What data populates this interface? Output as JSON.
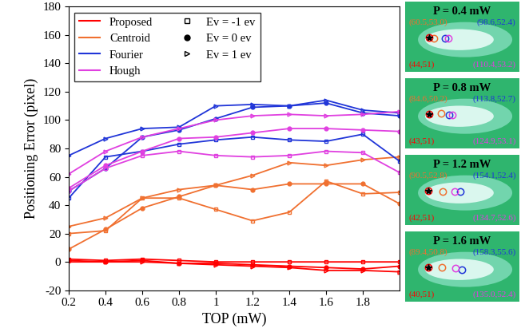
{
  "chart_data": {
    "type": "line",
    "xlabel": "TOP (mW)",
    "ylabel": "Positioning Error (pixel)",
    "x": [
      0.2,
      0.4,
      0.6,
      0.8,
      1.0,
      1.2,
      1.4,
      1.6,
      1.8,
      2.0
    ],
    "xlim": [
      0.2,
      2.0
    ],
    "xticks": [
      0.2,
      0.4,
      0.6,
      0.8,
      1,
      1.2,
      1.4,
      1.6,
      1.8
    ],
    "ylim": [
      -20,
      180
    ],
    "yticks": [
      -20,
      0,
      20,
      40,
      60,
      80,
      100,
      120,
      140,
      160,
      180
    ],
    "legend": "upper left",
    "markers": [
      {
        "name": "Ev = -1 ev",
        "marker": "square"
      },
      {
        "name": "Ev = 0 ev",
        "marker": "point"
      },
      {
        "name": "Ev = 1 ev",
        "marker": "triangle_right"
      }
    ],
    "series": [
      {
        "name": "Proposed",
        "color": "#ff0000",
        "lines": [
          {
            "ev": "Ev = -1 ev",
            "values": [
              2,
              1,
              2,
              1,
              0,
              0,
              0,
              0,
              0,
              0
            ]
          },
          {
            "ev": "Ev = 0 ev",
            "values": [
              1,
              0,
              1,
              -1,
              -1,
              -2,
              -3,
              -4,
              -5,
              -3
            ]
          },
          {
            "ev": "Ev = 1 ev",
            "values": [
              0,
              0,
              0,
              -1,
              -2,
              -3,
              -4,
              -6,
              -6,
              -7
            ]
          }
        ]
      },
      {
        "name": "Centroid",
        "color": "#f07030",
        "lines": [
          {
            "ev": "Ev = -1 ev",
            "values": [
              20,
              22,
              45,
              45,
              37,
              29,
              35,
              57,
              48,
              49
            ]
          },
          {
            "ev": "Ev = 0 ev",
            "values": [
              9,
              23,
              38,
              46,
              54,
              51,
              55,
              55,
              55,
              41
            ]
          },
          {
            "ev": "Ev = 1 ev",
            "values": [
              25,
              31,
              45,
              51,
              54,
              61,
              70,
              68,
              72,
              74
            ]
          }
        ]
      },
      {
        "name": "Fourier",
        "color": "#2035d8",
        "lines": [
          {
            "ev": "Ev = -1 ev",
            "values": [
              45,
              74,
              78,
              83,
              86,
              88,
              86,
              85,
              90,
              71
            ]
          },
          {
            "ev": "Ev = 0 ev",
            "values": [
              50,
              66,
              88,
              93,
              101,
              109,
              110,
              112,
              105,
              103
            ]
          },
          {
            "ev": "Ev = 1 ev",
            "values": [
              75,
              87,
              94,
              95,
              110,
              111,
              110,
              114,
              107,
              105
            ]
          }
        ]
      },
      {
        "name": "Hough",
        "color": "#e040e0",
        "lines": [
          {
            "ev": "Ev = -1 ev",
            "values": [
              50,
              66,
              75,
              78,
              75,
              74,
              75,
              78,
              77,
              63
            ]
          },
          {
            "ev": "Ev = 0 ev",
            "values": [
              52,
              68,
              78,
              87,
              88,
              91,
              94,
              94,
              93,
              92
            ]
          },
          {
            "ev": "Ev = 1 ev",
            "values": [
              62,
              78,
              88,
              94,
              100,
              103,
              104,
              103,
              104,
              106
            ]
          }
        ]
      }
    ],
    "panels": {
      "xlim": [
        -40,
        360
      ],
      "ylim": [
        110,
        -10
      ],
      "items": [
        {
          "title": "P = 0.4 mW",
          "points": [
            {
              "name": "Centroid",
              "x": 60.5,
              "y": 53.0,
              "label": "(60.5,53.0)"
            },
            {
              "name": "Fourier",
              "x": 98.6,
              "y": 52.4,
              "label": "(98.6,52.4)"
            },
            {
              "name": "Proposed",
              "x": 44,
              "y": 51,
              "label": "(44,51)"
            },
            {
              "name": "Hough",
              "x": 110.4,
              "y": 53.2,
              "label": "(110.4,53.2)"
            }
          ]
        },
        {
          "title": "P = 0.8 mW",
          "points": [
            {
              "name": "Centroid",
              "x": 84.6,
              "y": 50.2,
              "label": "(84.6,50.2)"
            },
            {
              "name": "Fourier",
              "x": 113.8,
              "y": 52.7,
              "label": "(113.8,52.7)"
            },
            {
              "name": "Proposed",
              "x": 43,
              "y": 51,
              "label": "(43,51)"
            },
            {
              "name": "Hough",
              "x": 124.9,
              "y": 53.1,
              "label": "(124.9,53.1)"
            }
          ]
        },
        {
          "title": "P = 1.2 mW",
          "points": [
            {
              "name": "Centroid",
              "x": 90.5,
              "y": 52.8,
              "label": "(90.5,52.8)"
            },
            {
              "name": "Fourier",
              "x": 154.1,
              "y": 52.4,
              "label": "(154.1,52.4)"
            },
            {
              "name": "Proposed",
              "x": 42,
              "y": 51,
              "label": "(42,51)"
            },
            {
              "name": "Hough",
              "x": 134.7,
              "y": 52.6,
              "label": "(134.7,52.6)"
            }
          ]
        },
        {
          "title": "P = 1.6 mW",
          "points": [
            {
              "name": "Centroid",
              "x": 89.4,
              "y": 50.8,
              "label": "(89.4,50.8)"
            },
            {
              "name": "Fourier",
              "x": 158.3,
              "y": 55.6,
              "label": "(158.3,55.6)"
            },
            {
              "name": "Proposed",
              "x": 40,
              "y": 51,
              "label": "(40,51)"
            },
            {
              "name": "Hough",
              "x": 135.0,
              "y": 52.4,
              "label": "(135.0,52.4)"
            }
          ]
        }
      ]
    }
  }
}
